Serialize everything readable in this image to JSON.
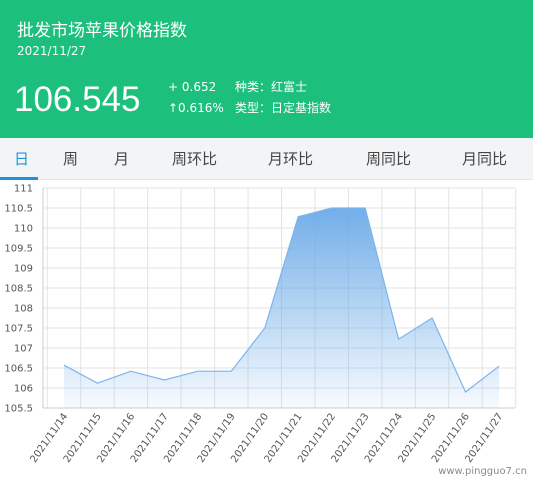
{
  "header": {
    "title": "批发市场苹果价格指数",
    "date": "2021/11/27",
    "price": "106.545",
    "change_abs": "+ 0.652",
    "change_pct": "↑0.616%",
    "variety_label": "种类：",
    "variety_value": "红富士",
    "type_label": "类型：",
    "type_value": "日定基指数",
    "bg_color": "#1dbf7c"
  },
  "tabs": [
    {
      "label": "日",
      "active": true
    },
    {
      "label": "周",
      "active": false
    },
    {
      "label": "月",
      "active": false
    },
    {
      "label": "周环比",
      "active": false
    },
    {
      "label": "月环比",
      "active": false
    },
    {
      "label": "周同比",
      "active": false
    },
    {
      "label": "月同比",
      "active": false
    }
  ],
  "tab_accent": "#1e94d8",
  "chart_data": {
    "type": "area",
    "categories": [
      "2021/11/14",
      "2021/11/15",
      "2021/11/16",
      "2021/11/17",
      "2021/11/18",
      "2021/11/19",
      "2021/11/20",
      "2021/11/21",
      "2021/11/22",
      "2021/11/23",
      "2021/11/24",
      "2021/11/25",
      "2021/11/26",
      "2021/11/27"
    ],
    "values": [
      106.57,
      106.12,
      106.42,
      106.2,
      106.42,
      106.42,
      107.5,
      110.28,
      110.5,
      110.5,
      107.22,
      107.75,
      105.9,
      106.545
    ],
    "yticks": [
      "105.5",
      "106",
      "106.5",
      "107",
      "107.5",
      "108",
      "108.5",
      "109",
      "109.5",
      "110",
      "110.5",
      "111"
    ],
    "ylim": [
      105.5,
      111
    ],
    "grid": true,
    "line_color": "#7cb5ec"
  },
  "watermark": "www.pingguo7.cn"
}
